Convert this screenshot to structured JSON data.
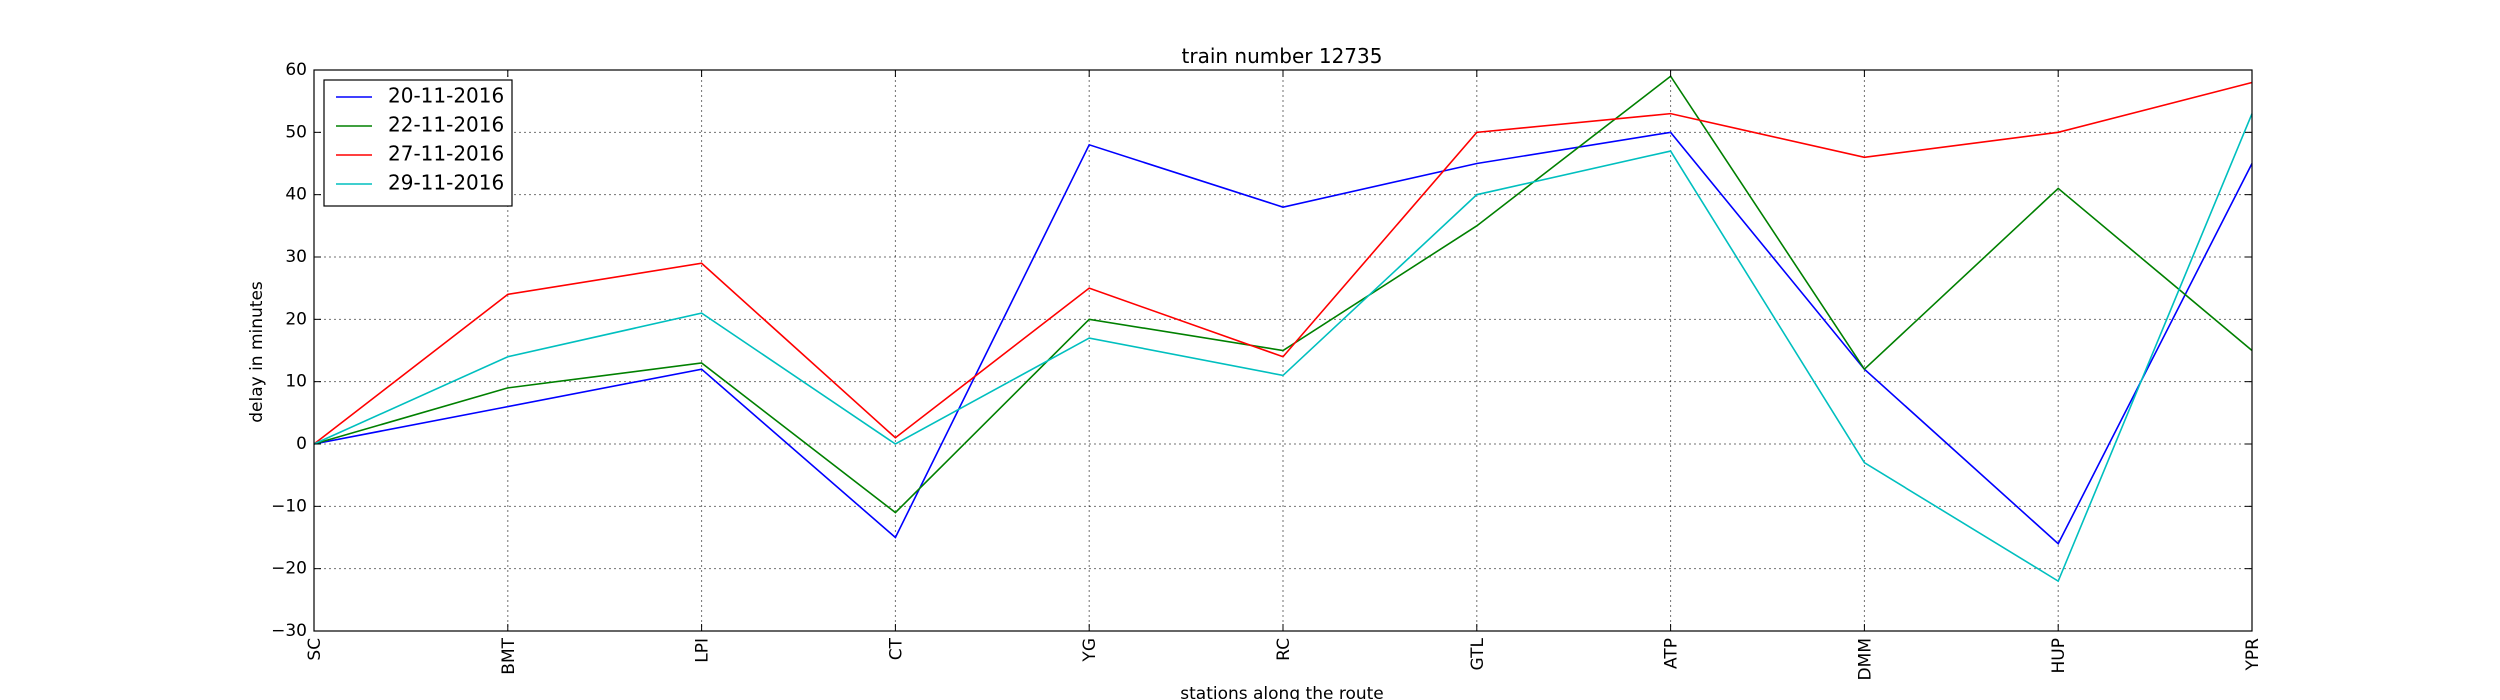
{
  "chart_data": {
    "type": "line",
    "title": "train number 12735",
    "xlabel": "stations along the route",
    "ylabel": "delay in minutes",
    "categories": [
      "SC",
      "BMT",
      "LPI",
      "CT",
      "YG",
      "RC",
      "GTL",
      "ATP",
      "DMM",
      "HUP",
      "YPR"
    ],
    "ylim": [
      -30,
      60
    ],
    "yticks": [
      -30,
      -20,
      -10,
      0,
      10,
      20,
      30,
      40,
      50,
      60
    ],
    "grid": true,
    "legend_position": "top-left",
    "series": [
      {
        "name": "20-11-2016",
        "color": "#0000ff",
        "values": [
          0,
          6,
          12,
          -15,
          48,
          38,
          45,
          50,
          12,
          -16,
          45
        ]
      },
      {
        "name": "22-11-2016",
        "color": "#008000",
        "values": [
          0,
          9,
          13,
          -11,
          20,
          15,
          35,
          59,
          12,
          41,
          15
        ]
      },
      {
        "name": "27-11-2016",
        "color": "#ff0000",
        "values": [
          0,
          24,
          29,
          1,
          25,
          14,
          50,
          53,
          46,
          50,
          58
        ]
      },
      {
        "name": "29-11-2016",
        "color": "#00bfbf",
        "values": [
          0,
          14,
          21,
          0,
          17,
          11,
          40,
          47,
          -3,
          -22,
          53
        ]
      }
    ]
  }
}
